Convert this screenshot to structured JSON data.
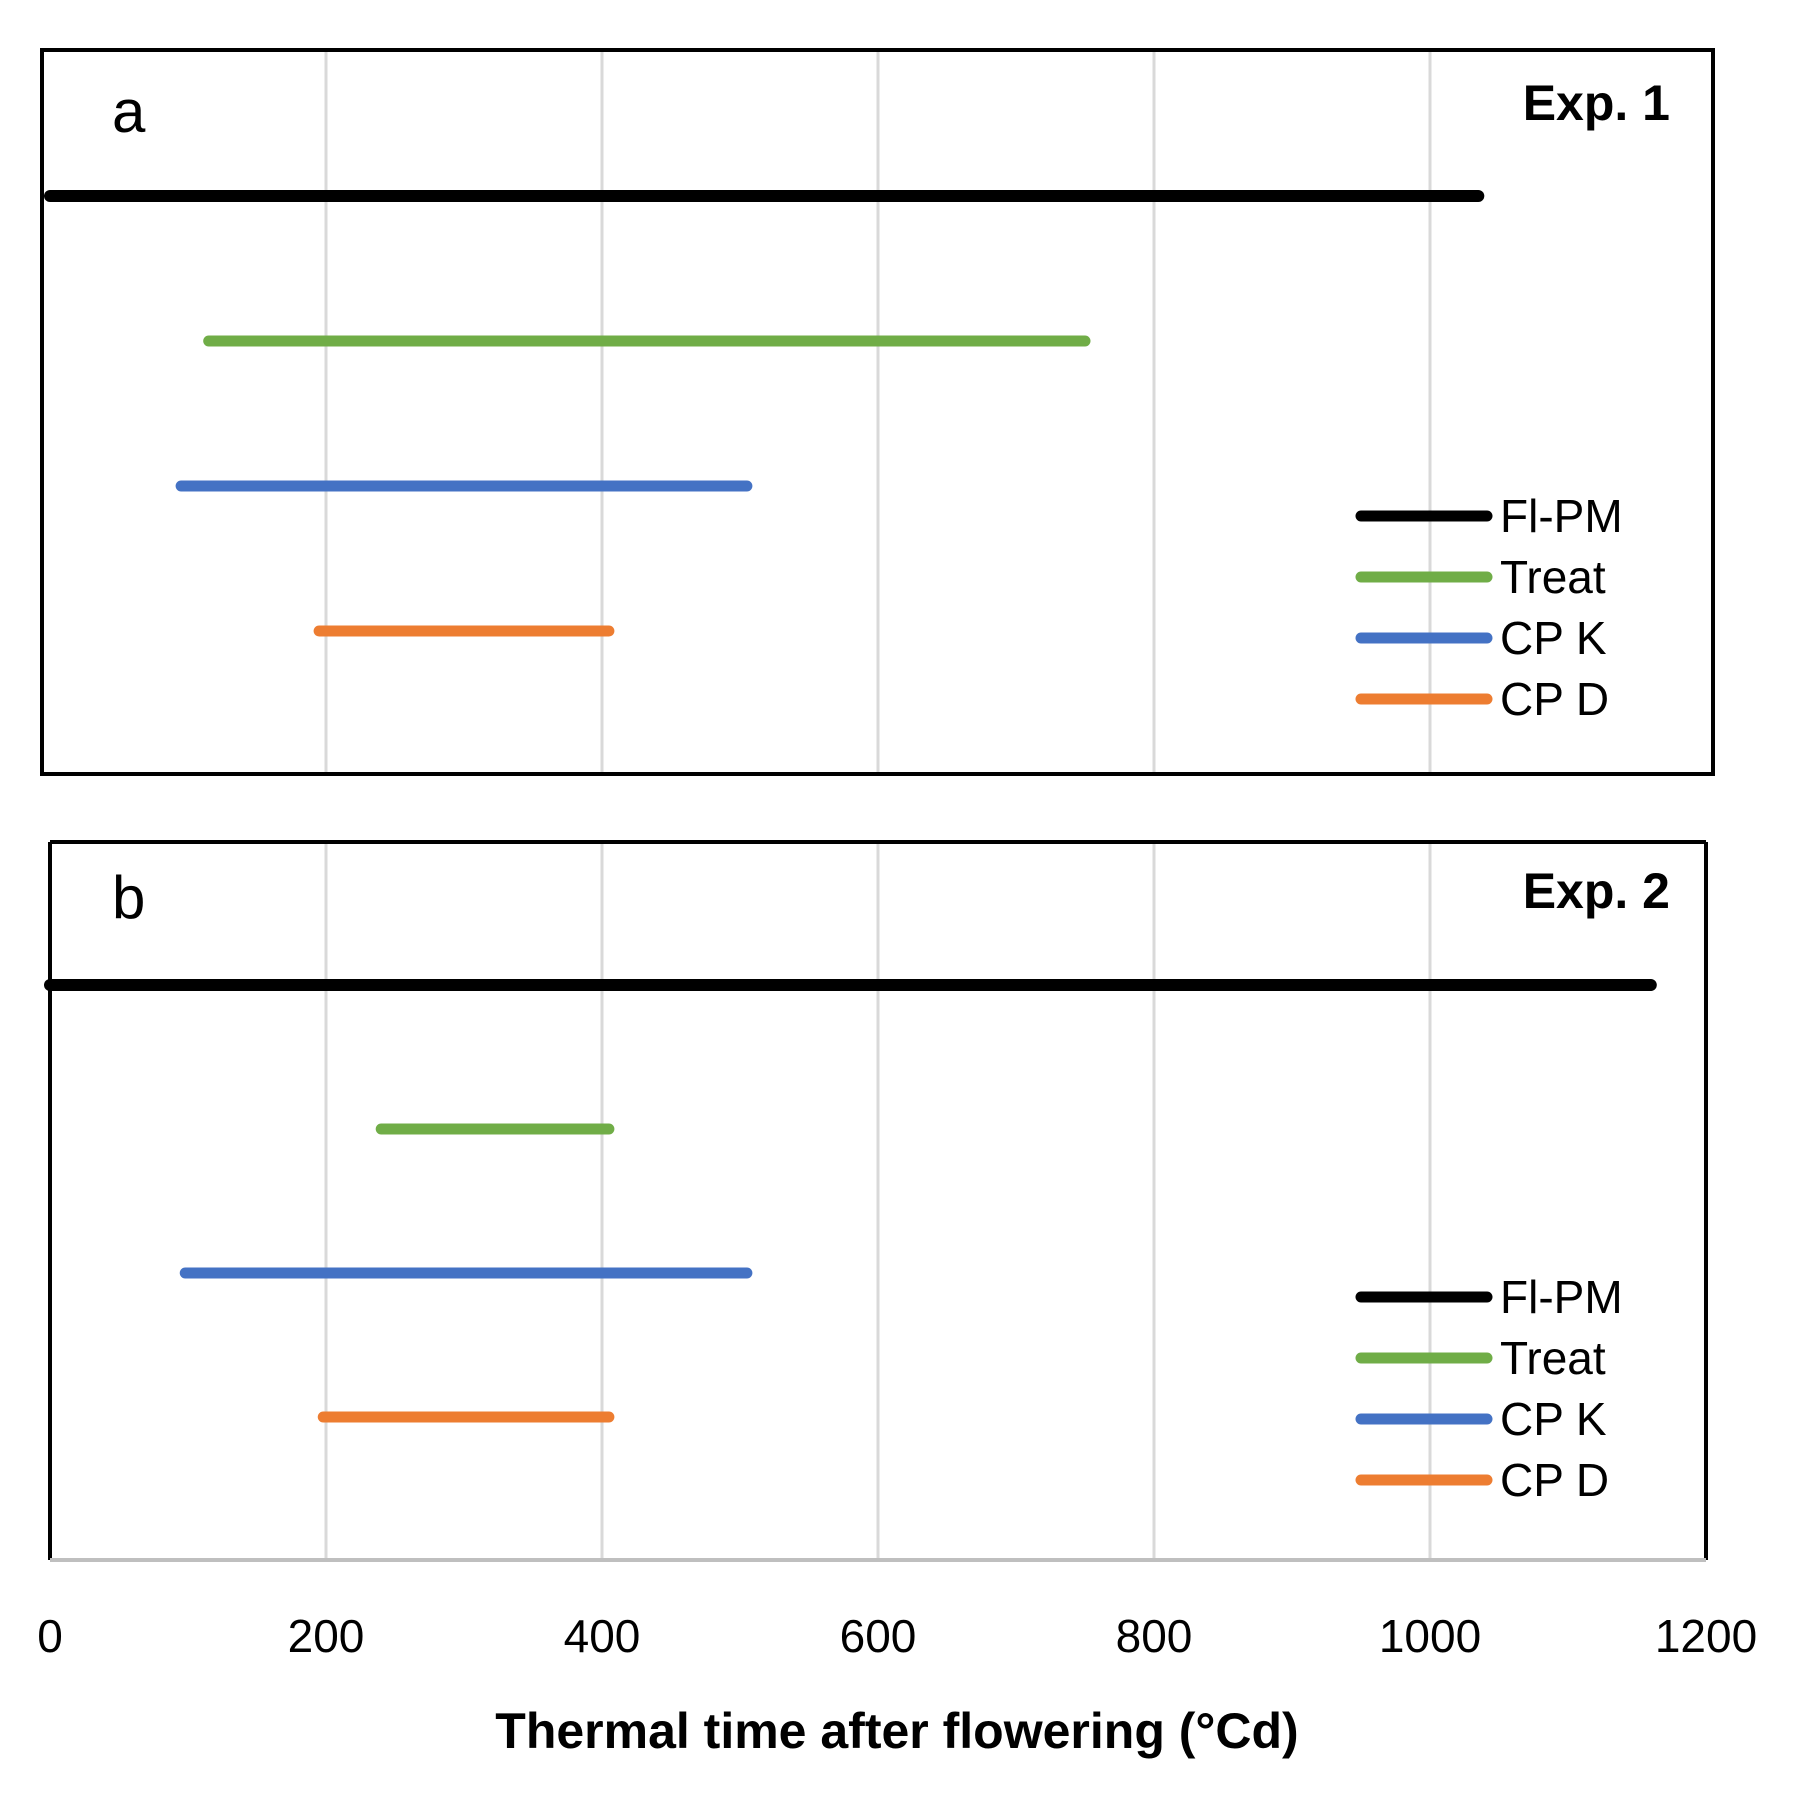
{
  "chart_data": {
    "type": "range-bar",
    "xlabel": "Thermal time after flowering (°Cd)",
    "xlim": [
      0,
      1200
    ],
    "xticks": [
      0,
      200,
      400,
      600,
      800,
      1000,
      1200
    ],
    "grid": "vertical",
    "legend_position": "bottom-right",
    "colors": {
      "Fl-PM": "#000000",
      "Treat": "#70ad47",
      "CP K": "#4472c4",
      "CP D": "#ed7d31"
    },
    "panels": [
      {
        "letter": "a",
        "title": "Exp. 1",
        "series": [
          {
            "name": "Fl-PM",
            "start": 0,
            "end": 1035
          },
          {
            "name": "Treat",
            "start": 115,
            "end": 750
          },
          {
            "name": "CP K",
            "start": 95,
            "end": 505
          },
          {
            "name": "CP D",
            "start": 195,
            "end": 405
          }
        ]
      },
      {
        "letter": "b",
        "title": "Exp. 2",
        "series": [
          {
            "name": "Fl-PM",
            "start": 0,
            "end": 1160
          },
          {
            "name": "Treat",
            "start": 240,
            "end": 405
          },
          {
            "name": "CP K",
            "start": 98,
            "end": 505
          },
          {
            "name": "CP D",
            "start": 198,
            "end": 405
          }
        ]
      }
    ],
    "legend": [
      "Fl-PM",
      "Treat",
      "CP K",
      "CP D"
    ]
  }
}
